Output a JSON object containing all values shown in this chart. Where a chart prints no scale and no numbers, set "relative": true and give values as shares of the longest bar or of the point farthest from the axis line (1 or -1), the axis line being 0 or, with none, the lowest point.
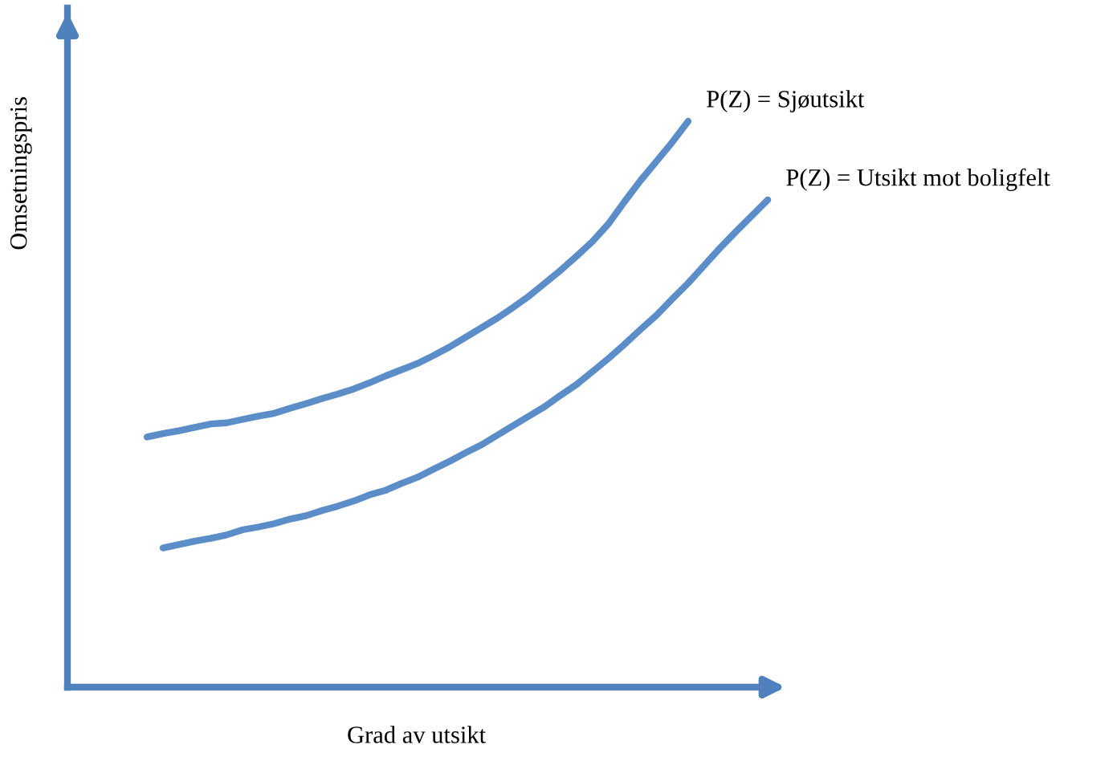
{
  "chart_data": {
    "type": "line",
    "relative": true,
    "xlabel": "Grad av utsikt",
    "ylabel": "Omsetningspris",
    "categories": [
      null,
      null,
      null,
      null,
      null,
      null,
      null,
      null,
      null,
      null,
      null,
      null,
      null,
      null,
      null,
      null,
      null,
      null,
      null,
      null,
      null,
      null,
      null,
      null,
      null,
      null,
      null,
      null,
      null,
      null,
      null,
      null,
      null,
      null,
      null,
      null,
      null,
      null,
      null,
      null
    ],
    "series": [
      {
        "name": "P(Z) = Sjøutsikt",
        "color": "#5b8ec9",
        "values": [
          0.442,
          0.448,
          0.453,
          0.459,
          0.465,
          0.467,
          0.473,
          0.479,
          0.484,
          0.493,
          0.501,
          0.51,
          0.518,
          0.527,
          0.538,
          0.55,
          0.561,
          0.572,
          0.586,
          0.601,
          0.618,
          0.635,
          0.652,
          0.671,
          0.691,
          0.714,
          0.737,
          0.762,
          0.788,
          0.819,
          0.858,
          0.895,
          0.929,
          0.963,
          1.0,
          null,
          null,
          null,
          null,
          null
        ]
      },
      {
        "name": "P(Z) = Utsikt mot boligfelt",
        "color": "#5b8ec9",
        "values": [
          null,
          0.246,
          0.252,
          0.258,
          0.263,
          0.269,
          0.278,
          0.283,
          0.289,
          0.297,
          0.303,
          0.312,
          0.32,
          0.329,
          0.34,
          0.348,
          0.36,
          0.371,
          0.385,
          0.399,
          0.414,
          0.428,
          0.445,
          0.462,
          0.479,
          0.496,
          0.516,
          0.535,
          0.558,
          0.581,
          0.606,
          0.632,
          0.657,
          0.686,
          0.714,
          0.745,
          0.776,
          0.805,
          0.833,
          0.861
        ]
      }
    ]
  }
}
